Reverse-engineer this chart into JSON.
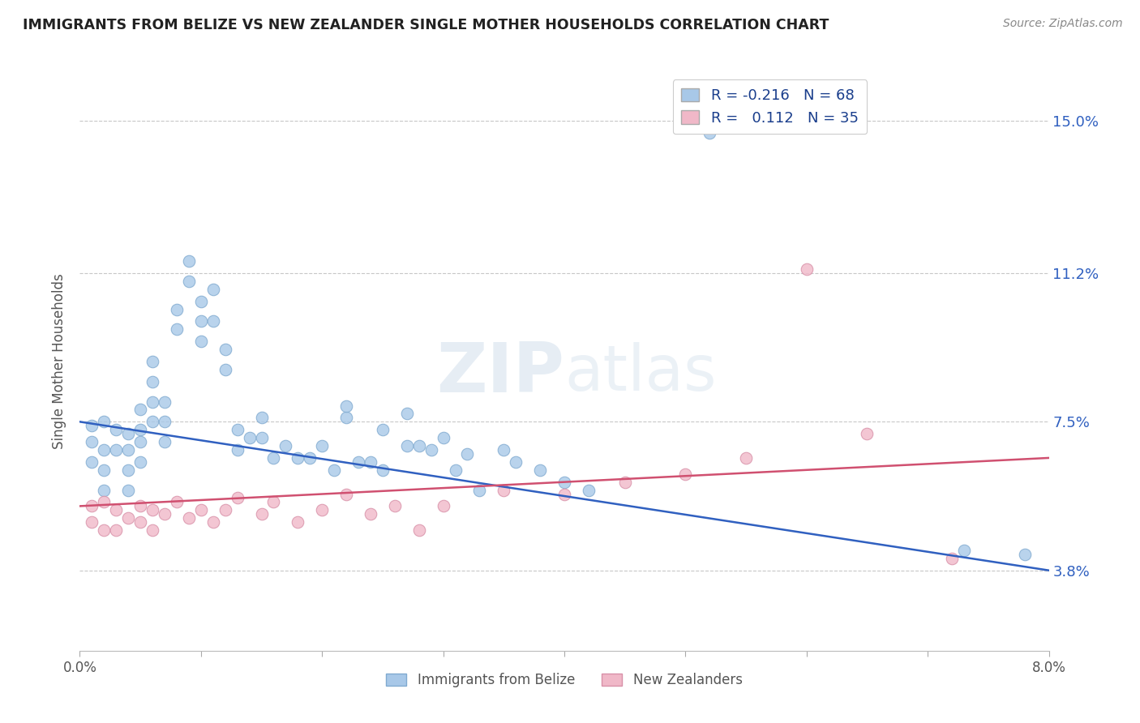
{
  "title": "IMMIGRANTS FROM BELIZE VS NEW ZEALANDER SINGLE MOTHER HOUSEHOLDS CORRELATION CHART",
  "source_text": "Source: ZipAtlas.com",
  "ylabel": "Single Mother Households",
  "xlim": [
    0.0,
    0.08
  ],
  "ylim": [
    0.018,
    0.162
  ],
  "yticks": [
    0.038,
    0.075,
    0.112,
    0.15
  ],
  "ytick_labels": [
    "3.8%",
    "7.5%",
    "11.2%",
    "15.0%"
  ],
  "grid_color": "#c8c8c8",
  "background_color": "#ffffff",
  "belize_color": "#a8c8e8",
  "belize_edge_color": "#80aad0",
  "nz_color": "#f0b8c8",
  "nz_edge_color": "#d890a8",
  "belize_line_color": "#3060c0",
  "nz_line_color": "#d05070",
  "legend_R1": "-0.216",
  "legend_N1": "68",
  "legend_R2": "0.112",
  "legend_N2": "35",
  "watermark": "ZIPatlas",
  "belize_scatter_x": [
    0.001,
    0.001,
    0.001,
    0.002,
    0.002,
    0.002,
    0.002,
    0.003,
    0.003,
    0.004,
    0.004,
    0.004,
    0.004,
    0.005,
    0.005,
    0.005,
    0.005,
    0.006,
    0.006,
    0.006,
    0.006,
    0.007,
    0.007,
    0.007,
    0.008,
    0.008,
    0.009,
    0.009,
    0.01,
    0.01,
    0.01,
    0.011,
    0.011,
    0.012,
    0.012,
    0.013,
    0.013,
    0.014,
    0.015,
    0.015,
    0.016,
    0.017,
    0.018,
    0.019,
    0.02,
    0.021,
    0.022,
    0.023,
    0.024,
    0.025,
    0.027,
    0.028,
    0.03,
    0.031,
    0.033,
    0.036,
    0.038,
    0.04,
    0.042,
    0.022,
    0.025,
    0.027,
    0.029,
    0.032,
    0.035,
    0.052,
    0.073,
    0.078
  ],
  "belize_scatter_y": [
    0.074,
    0.07,
    0.065,
    0.075,
    0.068,
    0.063,
    0.058,
    0.073,
    0.068,
    0.072,
    0.068,
    0.063,
    0.058,
    0.078,
    0.073,
    0.07,
    0.065,
    0.09,
    0.085,
    0.08,
    0.075,
    0.08,
    0.075,
    0.07,
    0.103,
    0.098,
    0.115,
    0.11,
    0.105,
    0.1,
    0.095,
    0.108,
    0.1,
    0.093,
    0.088,
    0.073,
    0.068,
    0.071,
    0.076,
    0.071,
    0.066,
    0.069,
    0.066,
    0.066,
    0.069,
    0.063,
    0.076,
    0.065,
    0.065,
    0.063,
    0.077,
    0.069,
    0.071,
    0.063,
    0.058,
    0.065,
    0.063,
    0.06,
    0.058,
    0.079,
    0.073,
    0.069,
    0.068,
    0.067,
    0.068,
    0.147,
    0.043,
    0.042
  ],
  "nz_scatter_x": [
    0.001,
    0.001,
    0.002,
    0.002,
    0.003,
    0.003,
    0.004,
    0.005,
    0.005,
    0.006,
    0.006,
    0.007,
    0.008,
    0.009,
    0.01,
    0.011,
    0.012,
    0.013,
    0.015,
    0.016,
    0.018,
    0.02,
    0.022,
    0.024,
    0.026,
    0.028,
    0.03,
    0.035,
    0.04,
    0.045,
    0.05,
    0.055,
    0.06,
    0.065,
    0.072
  ],
  "nz_scatter_y": [
    0.054,
    0.05,
    0.055,
    0.048,
    0.053,
    0.048,
    0.051,
    0.054,
    0.05,
    0.053,
    0.048,
    0.052,
    0.055,
    0.051,
    0.053,
    0.05,
    0.053,
    0.056,
    0.052,
    0.055,
    0.05,
    0.053,
    0.057,
    0.052,
    0.054,
    0.048,
    0.054,
    0.058,
    0.057,
    0.06,
    0.062,
    0.066,
    0.113,
    0.072,
    0.041
  ]
}
